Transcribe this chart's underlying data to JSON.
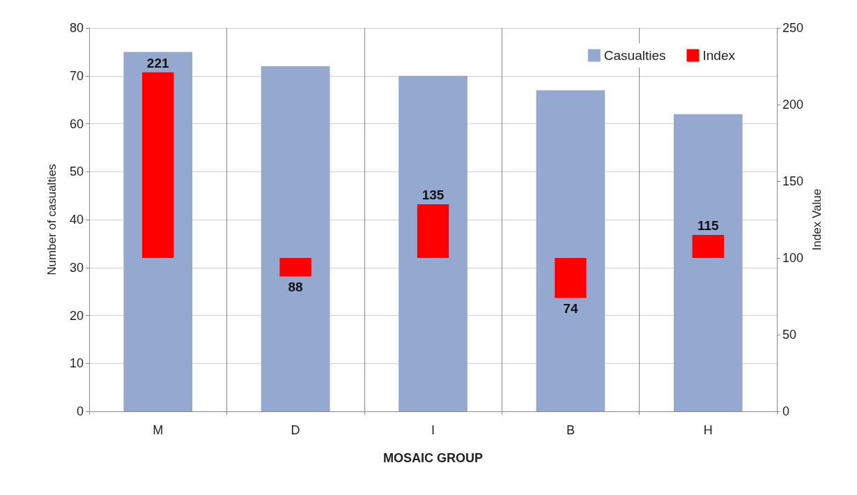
{
  "chart_data": {
    "type": "bar",
    "xlabel": "MOSAIC GROUP",
    "ylabel": "Number of casualties",
    "y2label": "Index Value",
    "categories": [
      "M",
      "D",
      "I",
      "B",
      "H"
    ],
    "series": [
      {
        "name": "Casualties",
        "color": "#95a9d0",
        "values": [
          75,
          72,
          70,
          67,
          62
        ]
      },
      {
        "name": "Index",
        "color": "#ff0000",
        "axis": "y2",
        "base": [
          100,
          100,
          100,
          100,
          100
        ],
        "values": [
          121,
          -12,
          35,
          -26,
          15
        ],
        "value_labels": [
          "221",
          "88",
          "135",
          "74",
          "115"
        ]
      }
    ],
    "ylim": [
      0,
      80
    ],
    "yticks": [
      0,
      10,
      20,
      30,
      40,
      50,
      60,
      70,
      80
    ],
    "y2lim": [
      0,
      250
    ],
    "y2ticks": [
      0,
      50,
      100,
      150,
      200,
      250
    ],
    "grid": true,
    "legend": "top right"
  }
}
